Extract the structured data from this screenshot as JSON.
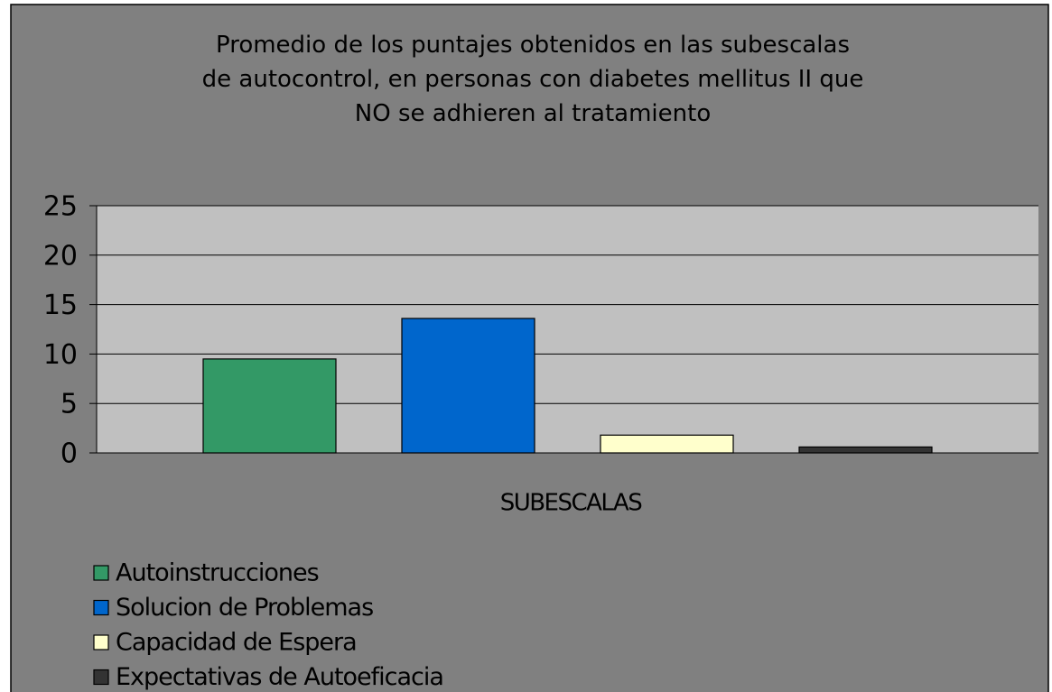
{
  "chart_data": {
    "type": "bar",
    "title": "Promedio de los puntajes obtenidos en las subescalas de autocontrol, en personas con diabetes mellitus II que NO se adhieren al tratamiento",
    "x_label": "SUBESCALAS",
    "categories": [
      null
    ],
    "series": [
      {
        "name": "Autoinstrucciones",
        "color": "#339966",
        "values": [
          9.5
        ]
      },
      {
        "name": "Solucion de Problemas",
        "color": "#0066cc",
        "values": [
          13.6
        ]
      },
      {
        "name": "Capacidad de Espera",
        "color": "#ffffcc",
        "values": [
          1.8
        ]
      },
      {
        "name": "Expectativas de Autoeficacia",
        "color": "#333333",
        "values": [
          0.6
        ]
      }
    ],
    "ylim": [
      0,
      25
    ],
    "yticks": [
      0,
      5,
      10,
      15,
      20,
      25
    ],
    "grid": true,
    "legend": "bottom-left"
  }
}
